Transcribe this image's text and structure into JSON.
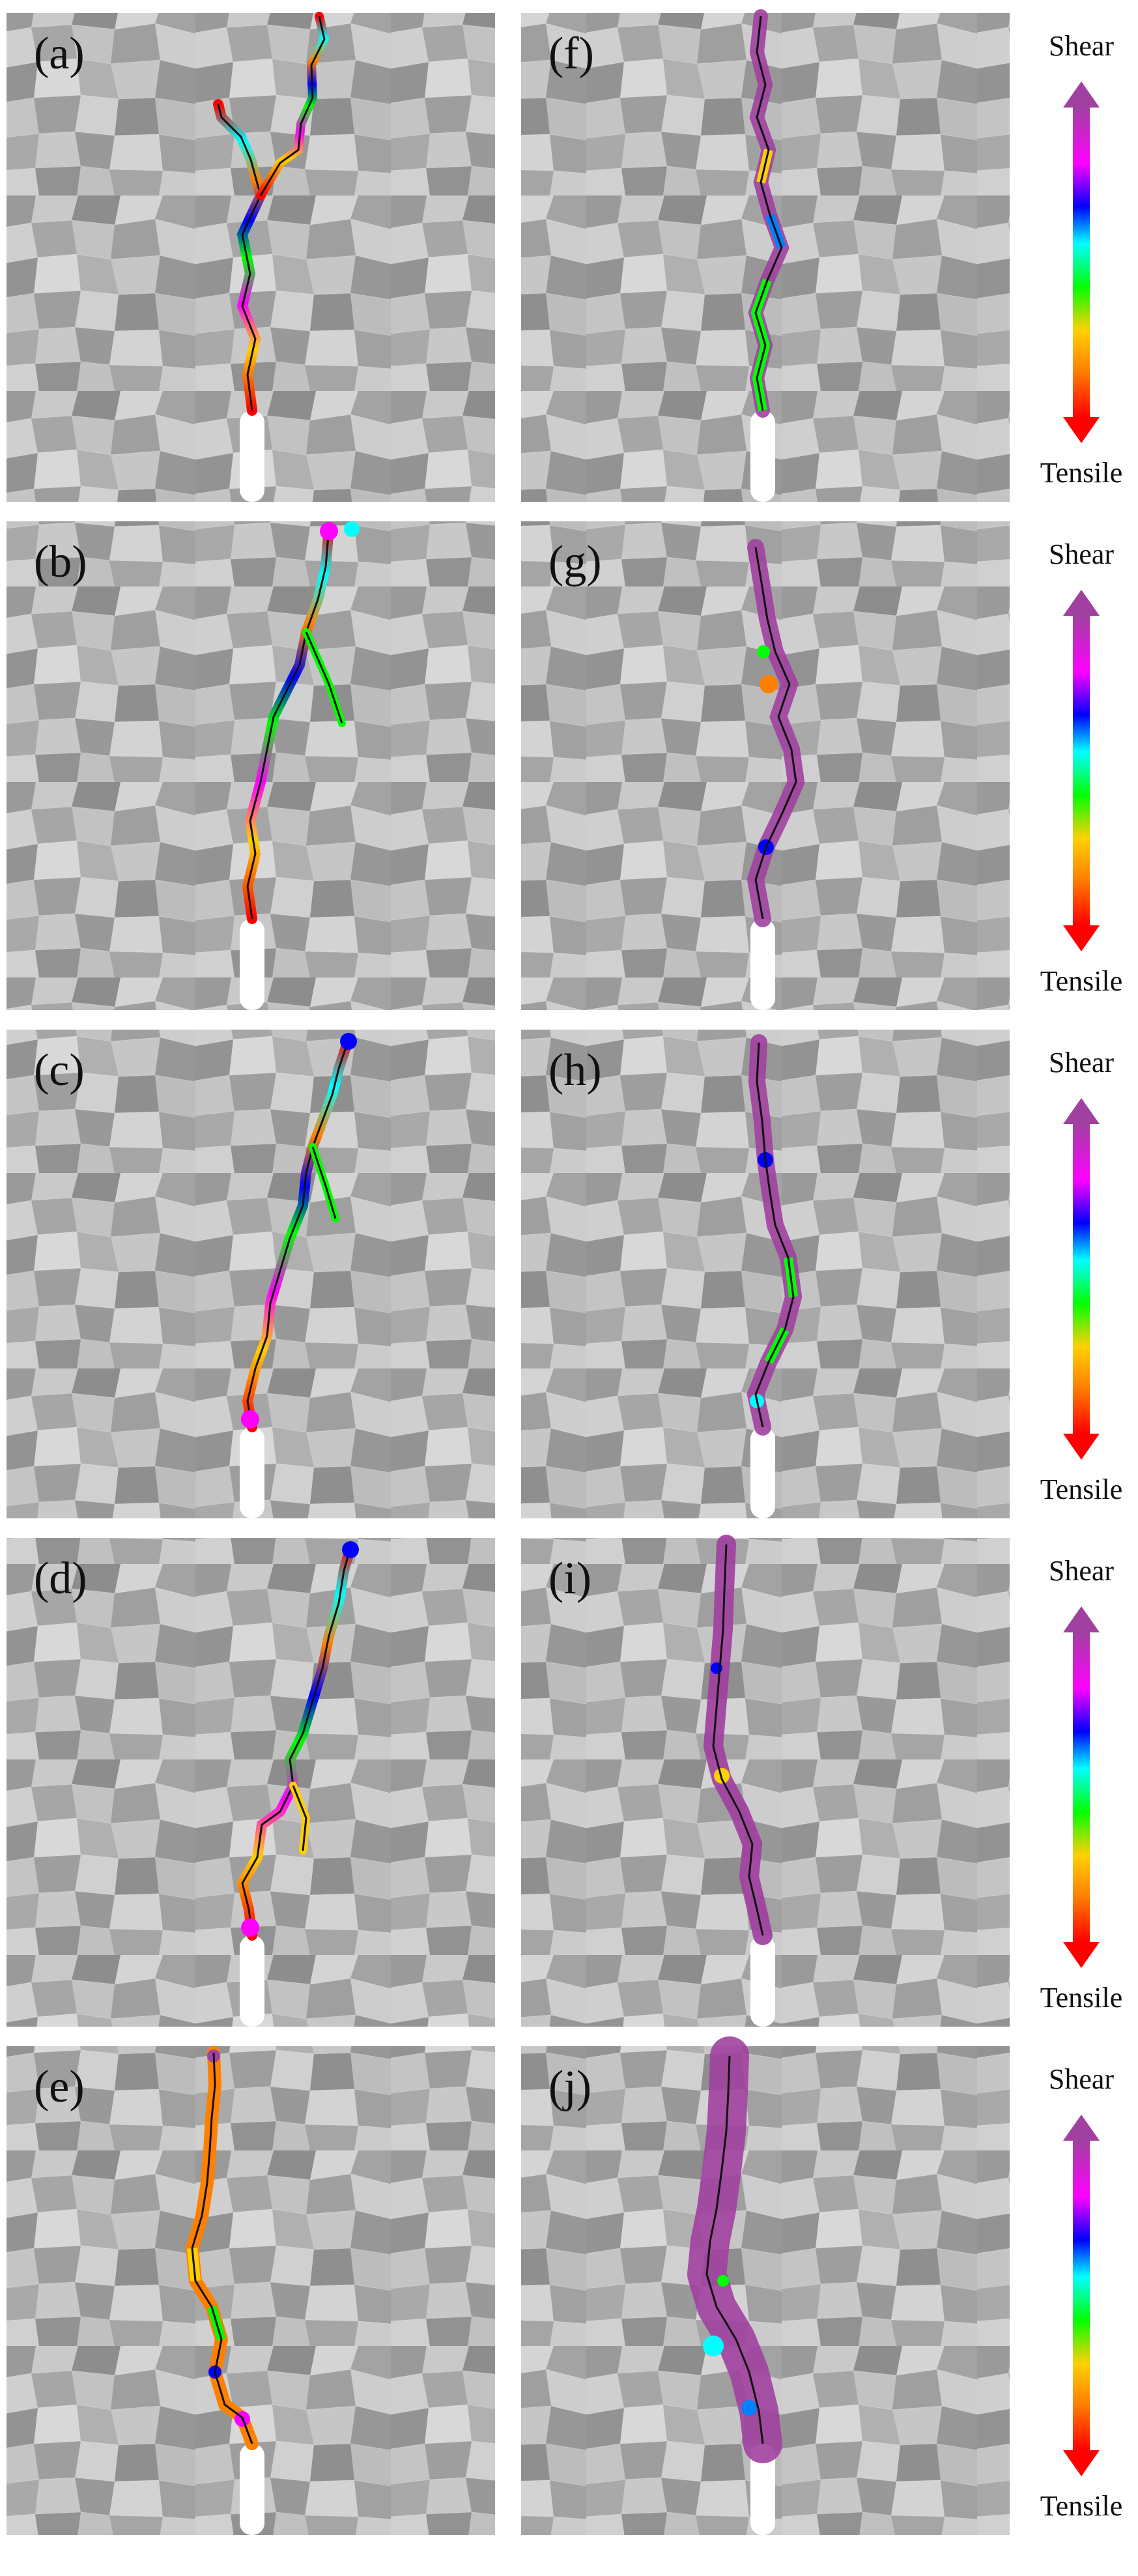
{
  "figure": {
    "rows": [
      {
        "left_panel": {
          "label": "(a)",
          "crack_mode": "mixed"
        },
        "right_panel": {
          "label": "(f)",
          "crack_mode": "mostly-shear"
        },
        "colorbar": {
          "top_label": "Shear",
          "bottom_label": "Tensile"
        }
      },
      {
        "left_panel": {
          "label": "(b)",
          "crack_mode": "mixed"
        },
        "right_panel": {
          "label": "(g)",
          "crack_mode": "mostly-shear"
        },
        "colorbar": {
          "top_label": "Shear",
          "bottom_label": "Tensile"
        }
      },
      {
        "left_panel": {
          "label": "(c)",
          "crack_mode": "mixed"
        },
        "right_panel": {
          "label": "(h)",
          "crack_mode": "mostly-shear"
        },
        "colorbar": {
          "top_label": "Shear",
          "bottom_label": "Tensile"
        }
      },
      {
        "left_panel": {
          "label": "(d)",
          "crack_mode": "mixed"
        },
        "right_panel": {
          "label": "(i)",
          "crack_mode": "shear"
        },
        "colorbar": {
          "top_label": "Shear",
          "bottom_label": "Tensile"
        }
      },
      {
        "left_panel": {
          "label": "(e)",
          "crack_mode": "tensile-dominant"
        },
        "right_panel": {
          "label": "(j)",
          "crack_mode": "shear-heavy"
        },
        "colorbar": {
          "top_label": "Shear",
          "bottom_label": "Tensile"
        }
      }
    ],
    "colorscale": [
      "#ff0000",
      "#ff8000",
      "#ffd000",
      "#00ff00",
      "#00ffff",
      "#0000ff",
      "#ff00ff",
      "#a040a0"
    ],
    "background_grain_colors": [
      "#8a8a8a",
      "#9c9c9c",
      "#adadad",
      "#bdbdbd",
      "#cacaca",
      "#d6d6d6"
    ]
  }
}
